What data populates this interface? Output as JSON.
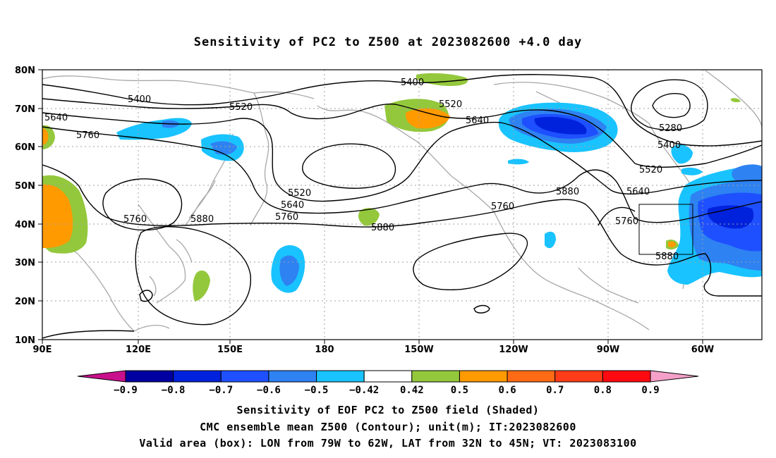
{
  "title": "Sensitivity of PC2 to Z500 at 2023082600 +4.0 day",
  "lat_labels": [
    "80N",
    "70N",
    "60N",
    "50N",
    "40N",
    "30N",
    "20N",
    "10N"
  ],
  "lon_labels": [
    "90E",
    "120E",
    "150E",
    "180",
    "150W",
    "120W",
    "90W",
    "60W"
  ],
  "contour_labels": {
    "c5400a": "5400",
    "c5400b": "5400",
    "c5400c": "5400",
    "c5520a": "5520",
    "c5520b": "5520",
    "c5520c": "5520",
    "c5520d": "5520",
    "c5640a": "5640",
    "c5640b": "5640",
    "c5640c": "5640",
    "c5640d": "5640",
    "c5760a": "5760",
    "c5760b": "5760",
    "c5760c": "5760",
    "c5760d": "5760",
    "c5760e": "5760",
    "c5880a": "5880",
    "c5880b": "5880",
    "c5880c": "5880",
    "c5880d": "5880",
    "c5280": "5280"
  },
  "colorbar": {
    "labels": [
      "-0.9",
      "-0.8",
      "-0.7",
      "-0.6",
      "-0.5",
      "-0.42",
      "0.42",
      "0.5",
      "0.6",
      "0.7",
      "0.8",
      "0.9"
    ],
    "colors": [
      "#0000a0",
      "#0022dd",
      "#1e50ff",
      "#2e82f2",
      "#19c3ff",
      "#ffffff",
      "#94c83c",
      "#ff9a00",
      "#ff6a14",
      "#ff3c18",
      "#ff0a10"
    ],
    "low_end_color": "#c8108c",
    "high_end_color": "#f4a0c8"
  },
  "captions": {
    "line1": "Sensitivity of EOF PC2 to Z500 field (Shaded)",
    "line2": "CMC ensemble mean Z500 (Contour); unit(m); IT:2023082600",
    "line3": "Valid area (box): LON from 79W to 62W, LAT from 32N to 45N; VT: 2023083100"
  }
}
